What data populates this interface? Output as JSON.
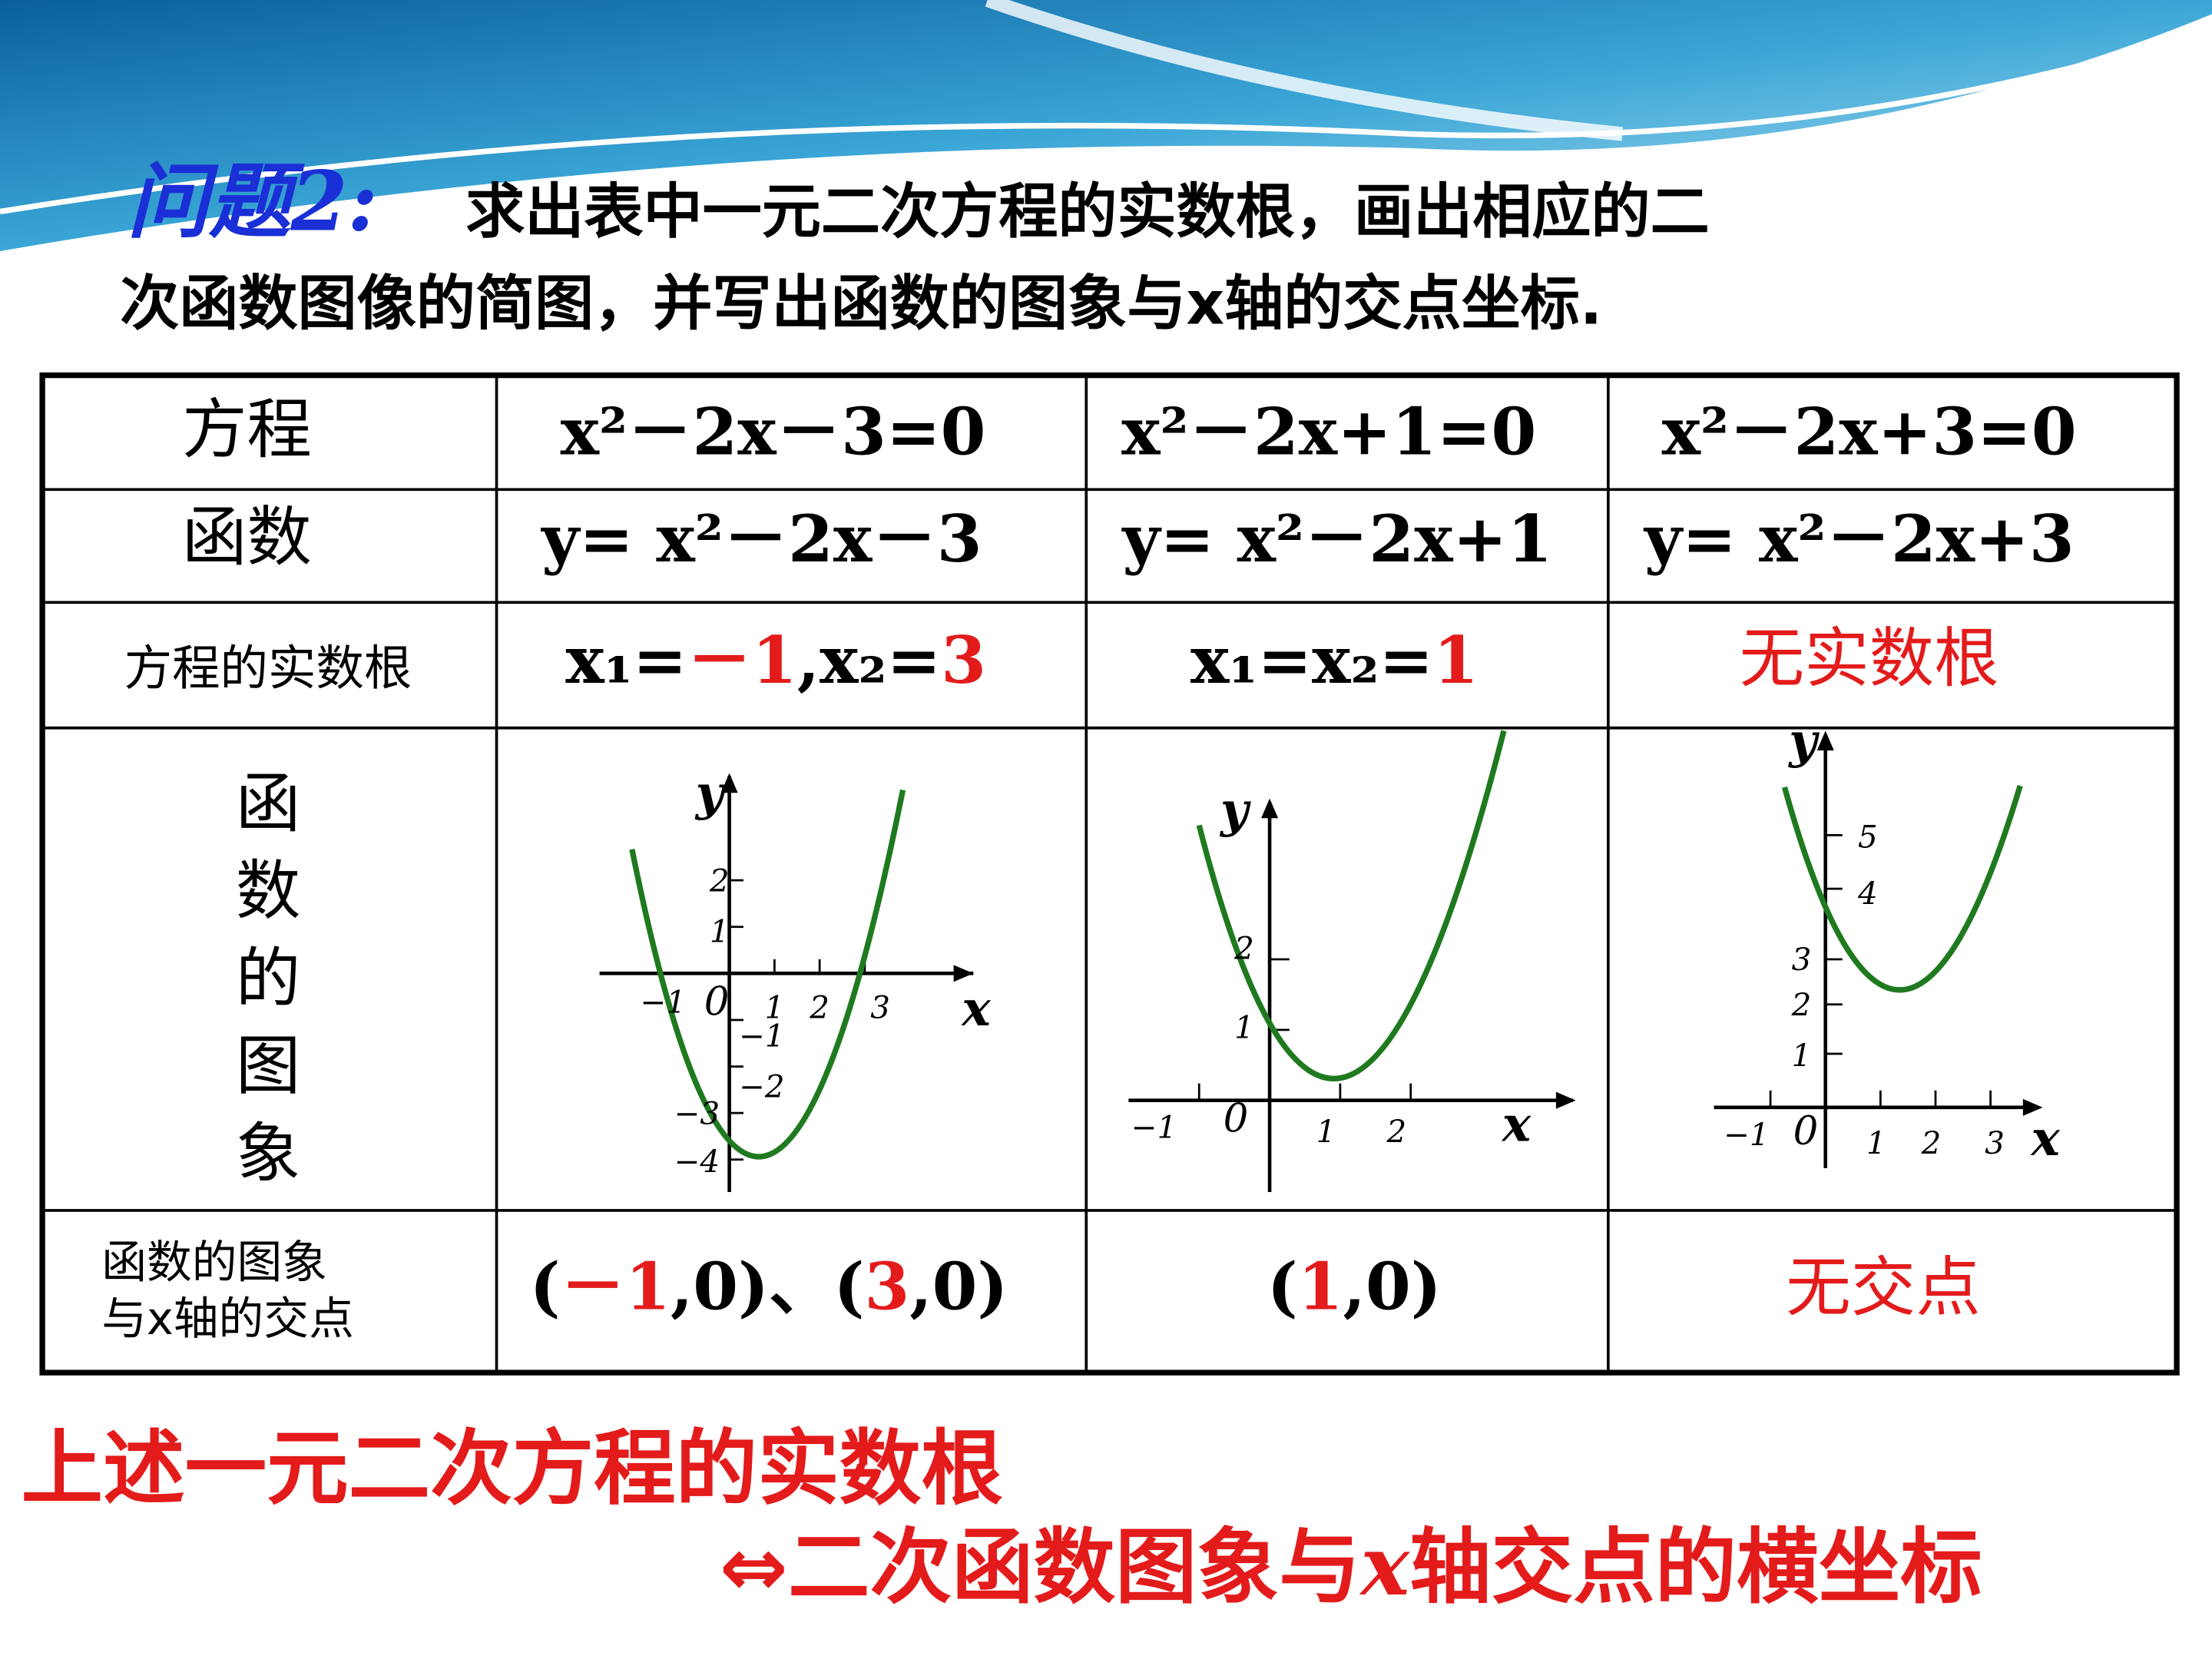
{
  "header": {
    "title_label": "问题2:",
    "title_line1": "求出表中一元二次方程的实数根，画出相应的二",
    "title_line2": "次函数图像的简图，并写出函数的图象与x轴的交点坐标."
  },
  "table": {
    "rows": [
      [
        [
          {
            "text": "方程"
          }
        ],
        [
          {
            "text": "x²－2x－3=0"
          }
        ],
        [
          {
            "text": "x²－2x+1=0"
          }
        ],
        [
          {
            "text": "x²－2x+3=0"
          }
        ]
      ],
      [
        [
          {
            "text": "函数"
          }
        ],
        [
          {
            "text": "y= x²－2x－3"
          }
        ],
        [
          {
            "text": "y= x²－2x+1"
          }
        ],
        [
          {
            "text": "y= x²－2x+3"
          }
        ]
      ],
      [
        [
          {
            "text": "方程的实数根"
          }
        ],
        [
          {
            "text": "x₁="
          },
          {
            "text": "－1",
            "highlight": true
          },
          {
            "text": ",x₂="
          },
          {
            "text": "3",
            "highlight": true
          }
        ],
        [
          {
            "text": "x₁=x₂="
          },
          {
            "text": "1",
            "highlight": true
          }
        ],
        [
          {
            "text": "无实数根",
            "highlight": true
          }
        ]
      ],
      [
        [
          {
            "text": "函数的图象"
          }
        ]
      ],
      [
        [
          {
            "text": "函数的图象"
          },
          {
            "text": "与x轴的交点"
          }
        ],
        [
          {
            "text": "("
          },
          {
            "text": "－1",
            "highlight": true
          },
          {
            "text": ",0)、("
          },
          {
            "text": "3",
            "highlight": true
          },
          {
            "text": ",0)"
          }
        ],
        [
          {
            "text": "("
          },
          {
            "text": "1",
            "highlight": true
          },
          {
            "text": ",0)"
          }
        ],
        [
          {
            "text": "无交点",
            "highlight": true
          }
        ]
      ]
    ]
  },
  "graphs": [
    {
      "x_label": "x",
      "y_label": "y",
      "origin": "0",
      "x_ticks": [
        "−1",
        "1",
        "2",
        "3"
      ],
      "y_ticks": [
        "2",
        "1",
        "−1",
        "−2",
        "−3",
        "−4"
      ]
    },
    {
      "x_label": "x",
      "y_label": "y",
      "origin": "0",
      "x_ticks": [
        "−1",
        "1",
        "2"
      ],
      "y_ticks": [
        "2",
        "1"
      ]
    },
    {
      "x_label": "x",
      "y_label": "y",
      "origin": "0",
      "x_ticks": [
        "−1",
        "1",
        "2",
        "3"
      ],
      "y_ticks": [
        "5",
        "4",
        "3",
        "2",
        "1"
      ]
    }
  ],
  "conclusion": {
    "line1": "上述一元二次方程的实数根",
    "line2": [
      {
        "text": "⇔二次函数图象与"
      },
      {
        "text": "x",
        "italic": true
      },
      {
        "text": "轴交点的横坐标"
      }
    ]
  }
}
